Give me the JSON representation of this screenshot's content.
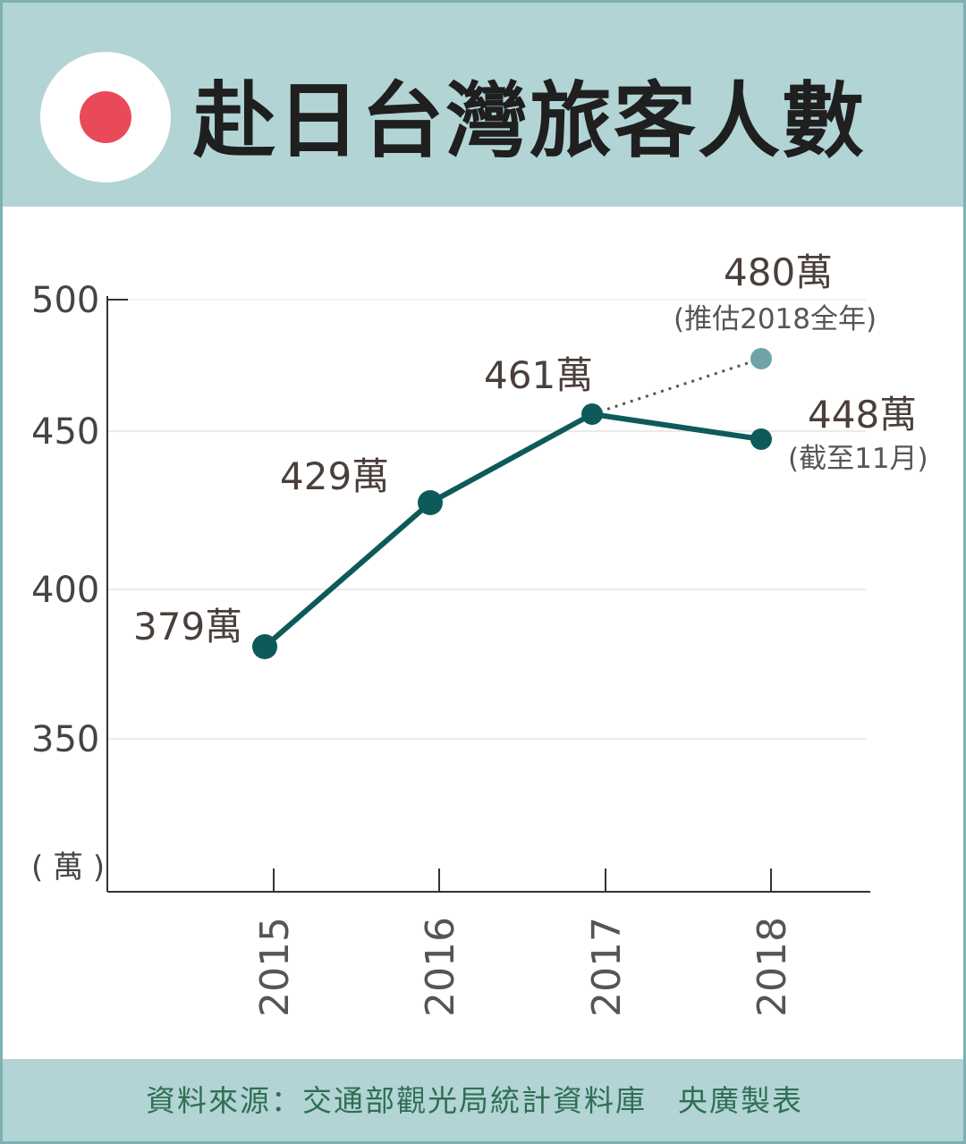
{
  "header": {
    "title": "赴日台灣旅客人數",
    "flag_icon": "japan-flag-icon",
    "flag_color": "#e84a5a"
  },
  "footer": {
    "source": "資料來源：交通部觀光局統計資料庫　央廣製表"
  },
  "chart_data": {
    "type": "line",
    "categories": [
      "2015",
      "2016",
      "2017",
      "2018"
    ],
    "series": [
      {
        "values": [
          379,
          429,
          461,
          448
        ],
        "labels": [
          "379萬",
          "429萬",
          "461萬",
          "448萬"
        ],
        "color": "#0e5a5a"
      },
      {
        "values": [
          null,
          null,
          461,
          480
        ],
        "labels": [
          "",
          "",
          "",
          "480萬"
        ],
        "color": "#6fa3a7",
        "style": "dotted"
      }
    ],
    "annotations": [
      {
        "category": "2018",
        "value": 480,
        "text": "(推估2018全年)"
      },
      {
        "category": "2018",
        "value": 448,
        "text": "(截至11月)"
      }
    ],
    "y_ticks": [
      "500",
      "450",
      "400",
      "350"
    ],
    "y_tick_values": [
      500,
      450,
      400,
      350
    ],
    "ylim": [
      300,
      500
    ],
    "ylabel": "( 萬 )",
    "grid": true
  }
}
